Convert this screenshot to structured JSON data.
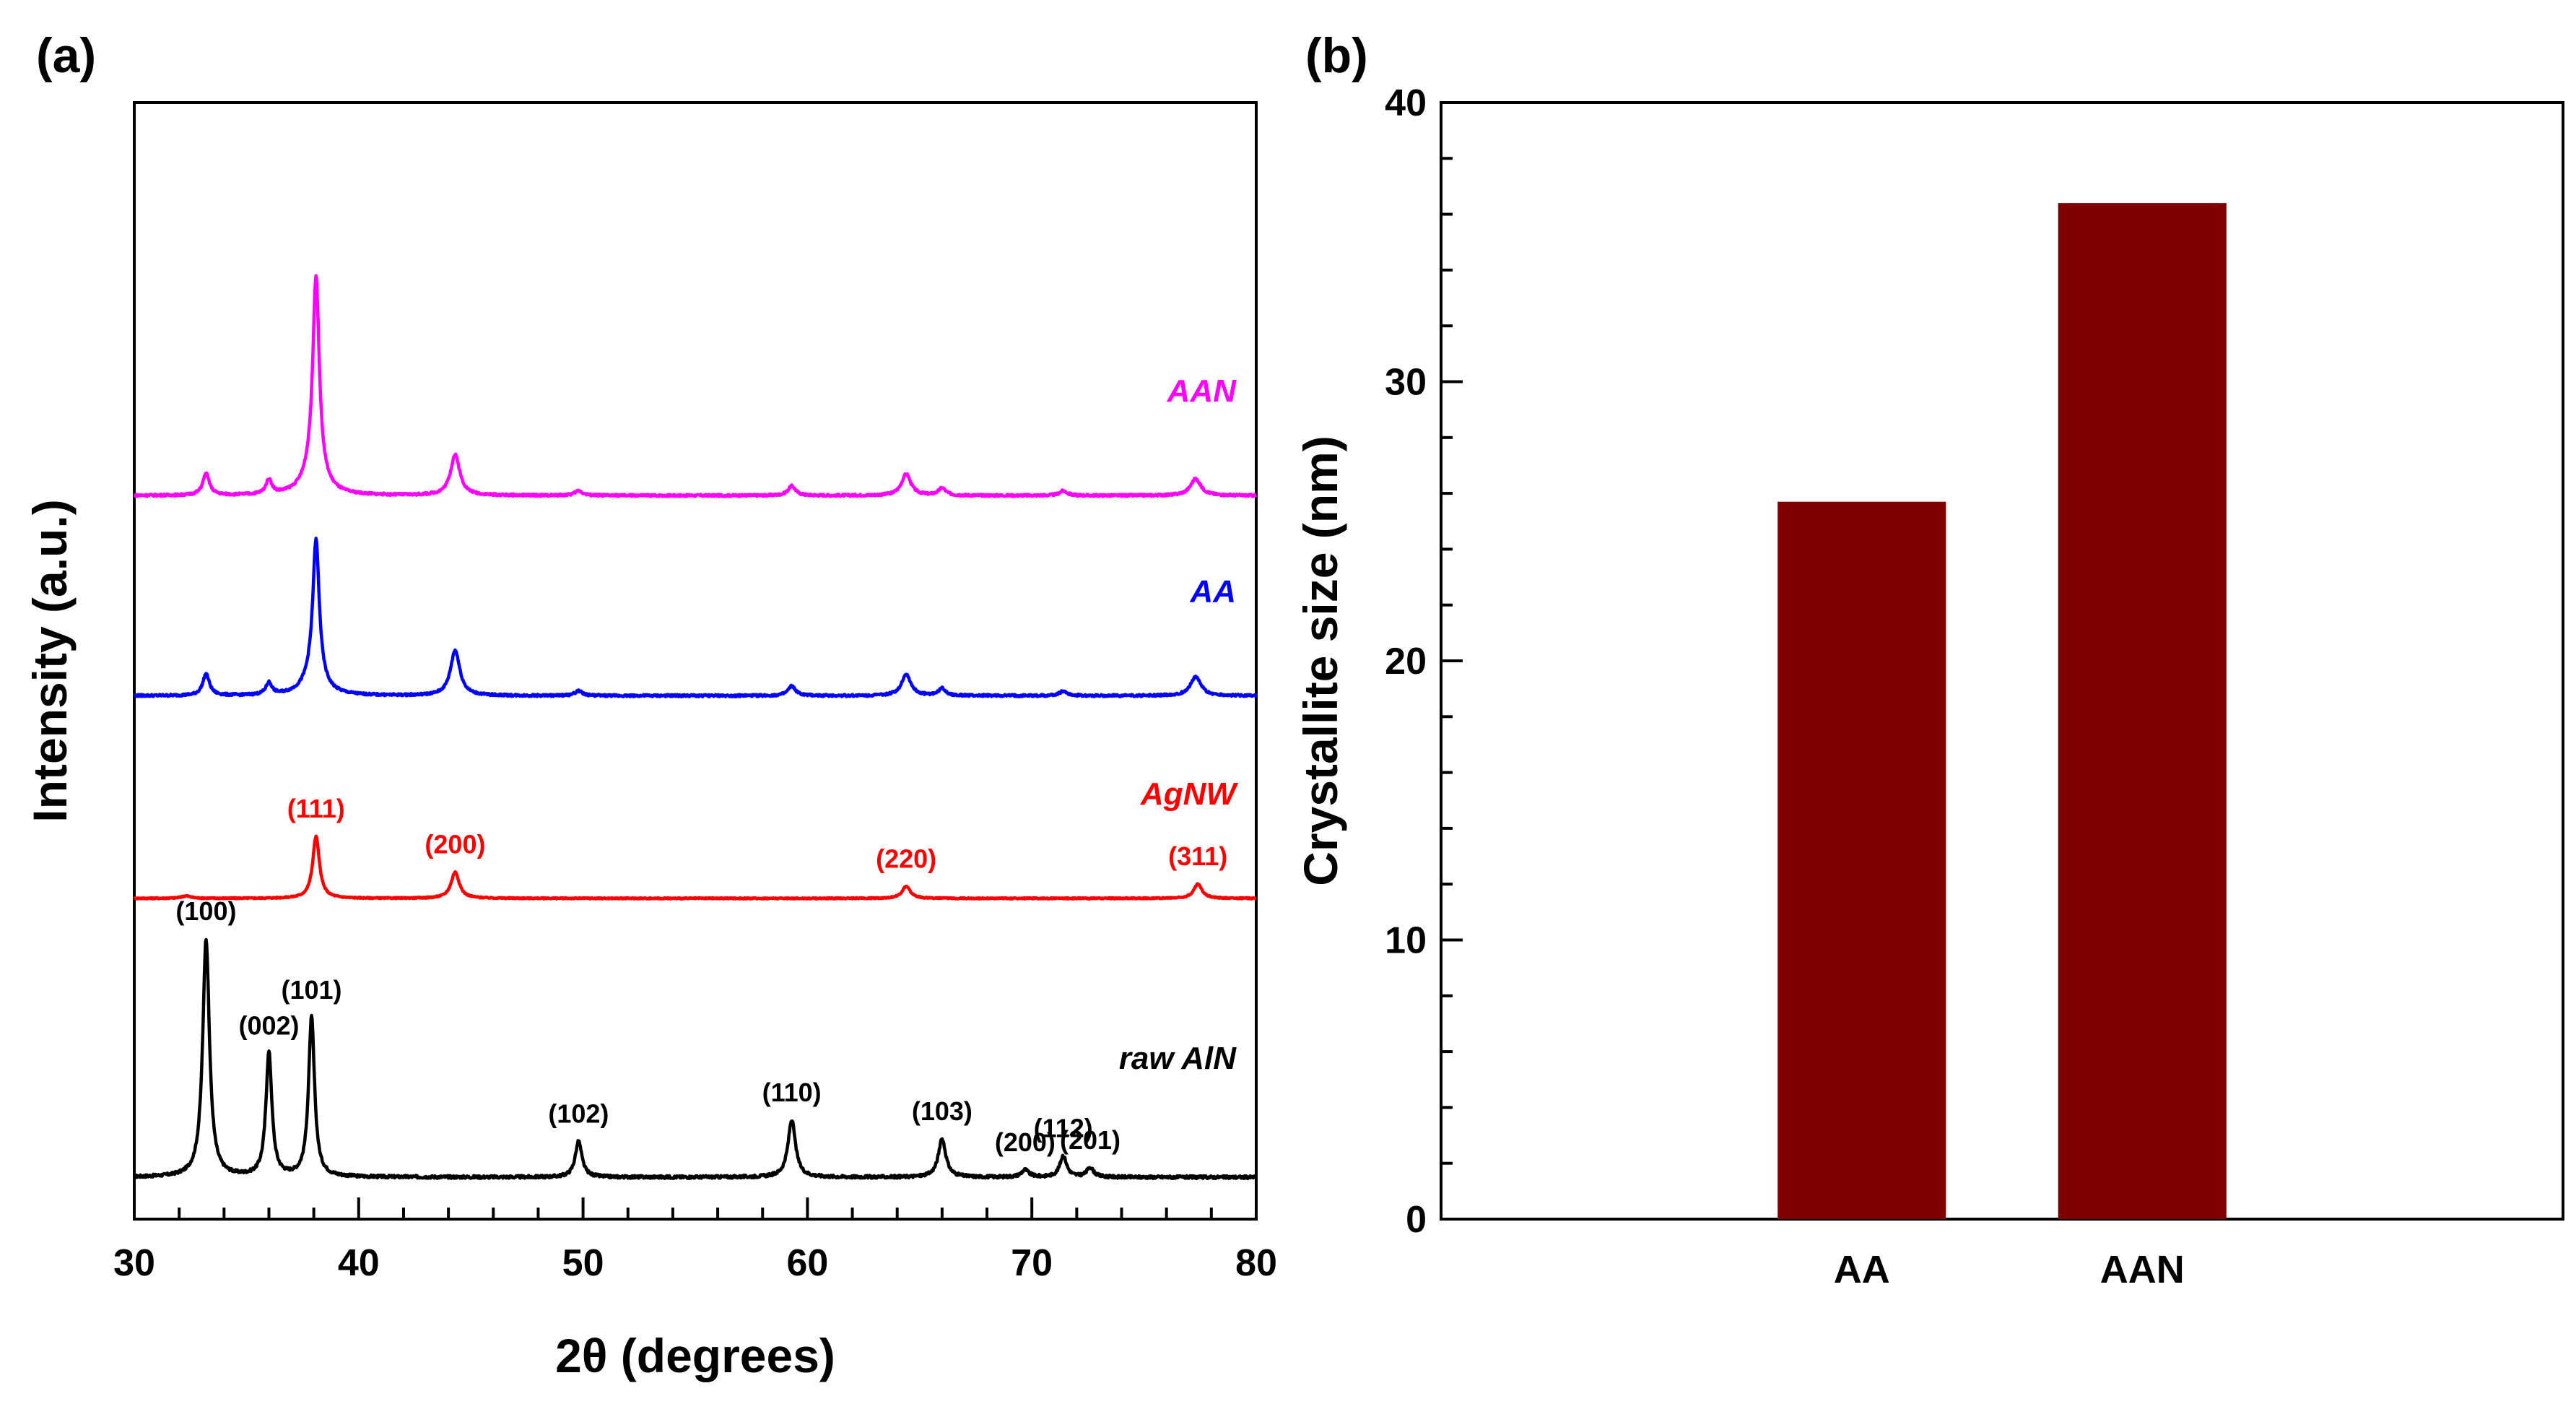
{
  "chart_data": [
    {
      "panel_label": "(a)",
      "type": "line",
      "title": "",
      "xlabel": "2θ (degrees)",
      "ylabel": "Intensity (a.u.)",
      "xlim": [
        30,
        80
      ],
      "xticks": [
        "30",
        "40",
        "50",
        "60",
        "70",
        "80"
      ],
      "yticks": [],
      "grid": false,
      "series": [
        {
          "name": "raw AlN",
          "color": "#000000",
          "baseline": 0,
          "noise": 0.012,
          "peaks": [
            [
              33.2,
              1.0,
              0.18
            ],
            [
              36.0,
              0.52,
              0.16
            ],
            [
              37.9,
              0.67,
              0.16
            ],
            [
              49.8,
              0.15,
              0.18
            ],
            [
              59.3,
              0.24,
              0.2
            ],
            [
              66.0,
              0.16,
              0.2
            ],
            [
              69.7,
              0.03,
              0.2
            ],
            [
              71.4,
              0.09,
              0.18
            ],
            [
              72.6,
              0.04,
              0.18
            ]
          ],
          "annotations": [
            {
              "label": "(100)",
              "x": 33.2,
              "h": 1.0
            },
            {
              "label": "(002)",
              "x": 36.0,
              "h": 0.52
            },
            {
              "label": "(101)",
              "x": 37.9,
              "h": 0.67
            },
            {
              "label": "(102)",
              "x": 49.8,
              "h": 0.15
            },
            {
              "label": "(110)",
              "x": 59.3,
              "h": 0.24
            },
            {
              "label": "(103)",
              "x": 66.0,
              "h": 0.16
            },
            {
              "label": "(200)",
              "x": 69.7,
              "h": 0.03
            },
            {
              "label": "(112)",
              "x": 71.4,
              "h": 0.09
            },
            {
              "label": "(201)",
              "x": 72.6,
              "h": 0.04
            }
          ]
        },
        {
          "name": "AgNW",
          "color": "#ff0000",
          "baseline": 1.17,
          "noise": 0.005,
          "peaks": [
            [
              38.1,
              0.26,
              0.18
            ],
            [
              44.3,
              0.11,
              0.22
            ],
            [
              64.4,
              0.05,
              0.22
            ],
            [
              77.4,
              0.06,
              0.22
            ],
            [
              32.3,
              0.01,
              0.25
            ]
          ],
          "annotations": [
            {
              "label": "(111)",
              "x": 38.1,
              "h": 0.26
            },
            {
              "label": "(200)",
              "x": 44.3,
              "h": 0.11
            },
            {
              "label": "(220)",
              "x": 64.4,
              "h": 0.05
            },
            {
              "label": "(311)",
              "x": 77.4,
              "h": 0.06
            }
          ]
        },
        {
          "name": "AA",
          "color": "#0000ff",
          "baseline": 2.02,
          "noise": 0.009,
          "peaks": [
            [
              33.2,
              0.09,
              0.18
            ],
            [
              36.0,
              0.05,
              0.16
            ],
            [
              38.1,
              0.58,
              0.17
            ],
            [
              38.0,
              0.08,
              0.5
            ],
            [
              44.3,
              0.19,
              0.25
            ],
            [
              49.8,
              0.02,
              0.2
            ],
            [
              59.3,
              0.04,
              0.2
            ],
            [
              64.4,
              0.09,
              0.25
            ],
            [
              66.0,
              0.03,
              0.2
            ],
            [
              71.4,
              0.02,
              0.2
            ],
            [
              77.3,
              0.08,
              0.28
            ]
          ],
          "annotations": []
        },
        {
          "name": "AAN",
          "color": "#ff00ff",
          "baseline": 2.86,
          "noise": 0.009,
          "peaks": [
            [
              33.2,
              0.09,
              0.18
            ],
            [
              36.0,
              0.06,
              0.16
            ],
            [
              38.1,
              0.83,
              0.17
            ],
            [
              38.0,
              0.1,
              0.5
            ],
            [
              44.3,
              0.17,
              0.25
            ],
            [
              49.8,
              0.02,
              0.2
            ],
            [
              59.3,
              0.04,
              0.2
            ],
            [
              64.4,
              0.09,
              0.25
            ],
            [
              66.0,
              0.03,
              0.2
            ],
            [
              71.4,
              0.02,
              0.2
            ],
            [
              77.3,
              0.07,
              0.28
            ]
          ],
          "annotations": []
        }
      ]
    },
    {
      "panel_label": "(b)",
      "type": "bar",
      "title": "",
      "xlabel": "",
      "ylabel": "Crystallite size (nm)",
      "ylim": [
        0,
        40
      ],
      "yticks": [
        "0",
        "10",
        "20",
        "30",
        "40"
      ],
      "categories": [
        "AA",
        "AAN"
      ],
      "values": [
        25.7,
        36.4
      ],
      "bar_color": "#800000",
      "grid": false
    }
  ]
}
